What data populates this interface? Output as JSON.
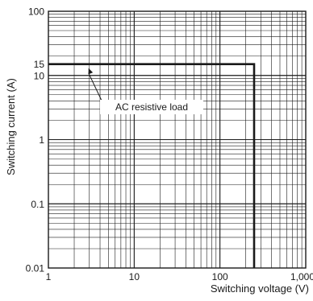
{
  "chart_data": {
    "type": "line",
    "title": "",
    "xlabel": "Switching voltage (V)",
    "ylabel": "Switching current (A)",
    "x_scale": "log",
    "y_scale": "log",
    "xlim": [
      1,
      1000
    ],
    "ylim": [
      0.01,
      100
    ],
    "grid": true,
    "x_ticks": [
      {
        "value": 1,
        "label": "1"
      },
      {
        "value": 10,
        "label": "10"
      },
      {
        "value": 100,
        "label": "100"
      },
      {
        "value": 1000,
        "label": "1,000"
      }
    ],
    "y_ticks": [
      {
        "value": 0.01,
        "label": "0.01"
      },
      {
        "value": 0.1,
        "label": "0.1"
      },
      {
        "value": 1,
        "label": "1"
      },
      {
        "value": 10,
        "label": "10"
      },
      {
        "value": 15,
        "label": "15"
      },
      {
        "value": 100,
        "label": "100"
      }
    ],
    "series": [
      {
        "x": [
          1,
          250,
          250
        ],
        "y": [
          15,
          15,
          0.01
        ]
      }
    ],
    "annotations": [
      {
        "text": "AC resistive load",
        "points_to": {
          "x": 3,
          "y": 15
        }
      }
    ]
  }
}
